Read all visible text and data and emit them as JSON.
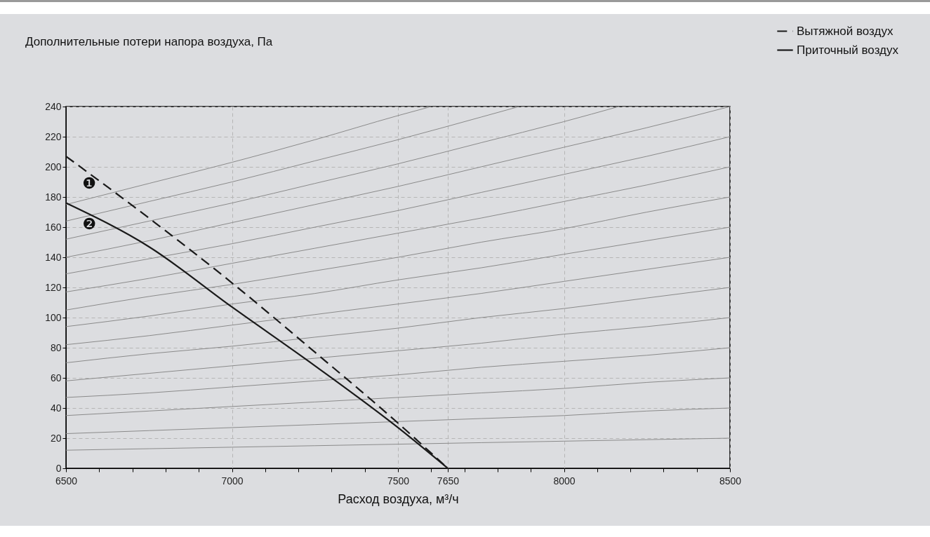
{
  "chart_data": {
    "type": "line",
    "title": "Дополнительные потери напора воздуха, Па",
    "xlabel": "Расход воздуха, м³/ч",
    "xlim": [
      6500,
      8500
    ],
    "ylim": [
      0,
      240
    ],
    "xticks": [
      6500,
      {
        "value": 6600,
        "label": null
      },
      {
        "value": 6700,
        "label": null
      },
      {
        "value": 6800,
        "label": null
      },
      {
        "value": 6900,
        "label": null
      },
      7000,
      {
        "value": 7100,
        "label": null
      },
      {
        "value": 7200,
        "label": null
      },
      {
        "value": 7300,
        "label": null
      },
      {
        "value": 7400,
        "label": null
      },
      7500,
      {
        "value": 7600,
        "label": null
      },
      7650,
      {
        "value": 7700,
        "label": null
      },
      {
        "value": 7800,
        "label": null
      },
      {
        "value": 7900,
        "label": null
      },
      8000,
      {
        "value": 8100,
        "label": null
      },
      {
        "value": 8200,
        "label": null
      },
      {
        "value": 8300,
        "label": null
      },
      {
        "value": 8400,
        "label": null
      },
      8500
    ],
    "yticks": [
      0,
      20,
      40,
      60,
      80,
      100,
      120,
      140,
      160,
      180,
      200,
      220,
      240
    ],
    "grid": true,
    "legend": "top right",
    "series": [
      {
        "color": "#8a8a8a",
        "x": [
          6500,
          6750,
          7000,
          7250,
          7500,
          7750,
          8000,
          8250,
          8500
        ],
        "values": [
          12,
          13,
          14,
          15,
          16,
          17,
          18,
          19,
          20
        ]
      },
      {
        "color": "#8a8a8a",
        "x": [
          6500,
          6750,
          7000,
          7250,
          7500,
          7750,
          8000,
          8250,
          8500
        ],
        "values": [
          23,
          25,
          27,
          29,
          31,
          33,
          35,
          38,
          40
        ]
      },
      {
        "color": "#8a8a8a",
        "x": [
          6500,
          6750,
          7000,
          7250,
          7500,
          7750,
          8000,
          8250,
          8500
        ],
        "values": [
          35,
          38,
          41,
          44,
          47,
          50,
          53,
          57,
          60
        ]
      },
      {
        "color": "#8a8a8a",
        "x": [
          6500,
          6750,
          7000,
          7250,
          7500,
          7750,
          8000,
          8250,
          8500
        ],
        "values": [
          47,
          50,
          54,
          58,
          62,
          67,
          71,
          75,
          80
        ]
      },
      {
        "color": "#8a8a8a",
        "x": [
          6500,
          6750,
          7000,
          7250,
          7500,
          7750,
          8000,
          8250,
          8500
        ],
        "values": [
          58,
          63,
          68,
          73,
          78,
          83,
          89,
          94,
          100
        ]
      },
      {
        "color": "#8a8a8a",
        "x": [
          6500,
          6750,
          7000,
          7250,
          7500,
          7750,
          8000,
          8250,
          8500
        ],
        "values": [
          70,
          76,
          81,
          87,
          93,
          100,
          106,
          113,
          120
        ]
      },
      {
        "color": "#8a8a8a",
        "x": [
          6500,
          6750,
          7000,
          7250,
          7500,
          7750,
          8000,
          8250,
          8500
        ],
        "values": [
          82,
          88,
          95,
          102,
          109,
          116,
          124,
          132,
          140
        ]
      },
      {
        "color": "#8a8a8a",
        "x": [
          6500,
          6750,
          7000,
          7250,
          7500,
          7750,
          8000,
          8250,
          8500
        ],
        "values": [
          94,
          101,
          109,
          116,
          125,
          133,
          142,
          151,
          160
        ]
      },
      {
        "color": "#8a8a8a",
        "x": [
          6500,
          6750,
          7000,
          7250,
          7500,
          7750,
          8000,
          8250,
          8500
        ],
        "values": [
          105,
          114,
          122,
          131,
          140,
          150,
          159,
          170,
          180
        ]
      },
      {
        "color": "#8a8a8a",
        "x": [
          6500,
          6750,
          7000,
          7250,
          7500,
          7750,
          8000,
          8250,
          8500
        ],
        "values": [
          117,
          126,
          136,
          146,
          156,
          166,
          177,
          188,
          200
        ]
      },
      {
        "color": "#8a8a8a",
        "x": [
          6500,
          6750,
          7000,
          7250,
          7500,
          7750,
          8000,
          8250,
          8500
        ],
        "values": [
          129,
          139,
          149,
          160,
          171,
          183,
          195,
          207,
          220
        ]
      },
      {
        "color": "#8a8a8a",
        "x": [
          6500,
          6750,
          7000,
          7250,
          7500,
          7750,
          8000,
          8250,
          8500
        ],
        "values": [
          140,
          151,
          163,
          175,
          187,
          200,
          213,
          226,
          240
        ]
      },
      {
        "color": "#8a8a8a",
        "x": [
          6500,
          6750,
          7000,
          7250,
          7500,
          7750,
          8000,
          8165
        ],
        "values": [
          152,
          164,
          176,
          189,
          202,
          216,
          230,
          240
        ]
      },
      {
        "color": "#8a8a8a",
        "x": [
          6500,
          6750,
          7000,
          7250,
          7500,
          7750,
          7865
        ],
        "values": [
          164,
          177,
          190,
          204,
          218,
          233,
          240
        ]
      },
      {
        "color": "#8a8a8a",
        "x": [
          6500,
          6750,
          7000,
          7250,
          7500,
          7600
        ],
        "values": [
          175,
          189,
          203,
          218,
          234,
          240
        ]
      },
      {
        "name": "Вытяжной воздух",
        "color": "#1a1a1a",
        "line_style": "dashed",
        "x": [
          6500,
          6750,
          7000,
          7250,
          7500,
          7650
        ],
        "values": [
          207,
          166,
          123,
          77,
          30,
          0
        ]
      },
      {
        "name": "Приточный воздух",
        "color": "#1a1a1a",
        "line_style": "solid",
        "x": [
          6500,
          6750,
          7000,
          7250,
          7500,
          7650
        ],
        "values": [
          176,
          147,
          107,
          68,
          27,
          0
        ]
      }
    ],
    "annotations": [
      {
        "text": "❶",
        "x": 6570,
        "y": 195
      },
      {
        "text": "❷",
        "x": 6570,
        "y": 168
      }
    ]
  }
}
